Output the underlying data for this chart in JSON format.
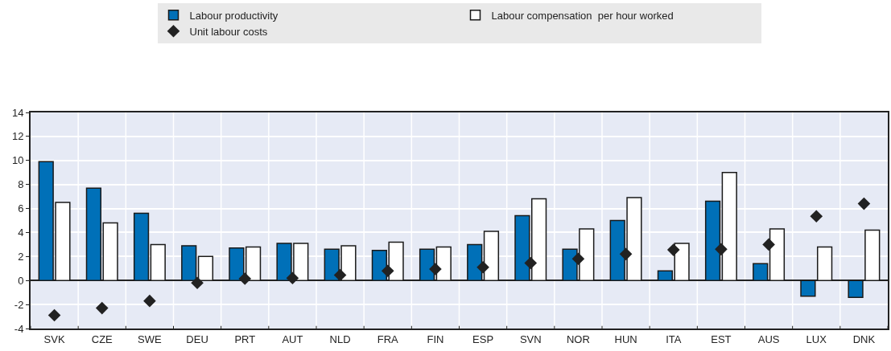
{
  "chart_data": {
    "type": "bar",
    "categories": [
      "SVK",
      "CZE",
      "SWE",
      "DEU",
      "PRT",
      "AUT",
      "NLD",
      "FRA",
      "FIN",
      "ESP",
      "SVN",
      "NOR",
      "HUN",
      "ITA",
      "EST",
      "AUS",
      "LUX",
      "DNK"
    ],
    "series": [
      {
        "name": "Labour productivity",
        "color": "#0070b8",
        "values": [
          9.9,
          7.7,
          5.6,
          2.9,
          2.7,
          3.1,
          2.6,
          2.5,
          2.6,
          3.0,
          5.4,
          2.6,
          5.0,
          0.8,
          6.6,
          1.4,
          -1.3,
          -1.4
        ]
      },
      {
        "name": "Labour compensation  per hour worked",
        "color": "#ffffff",
        "values": [
          6.5,
          4.8,
          3.0,
          2.0,
          2.8,
          3.1,
          2.9,
          3.2,
          2.8,
          4.1,
          6.8,
          4.3,
          6.9,
          3.1,
          9.0,
          4.3,
          2.8,
          4.2
        ]
      },
      {
        "name": "Unit labour costs",
        "type": "scatter",
        "color": "#222222",
        "marker": "diamond",
        "values": [
          -2.9,
          -2.3,
          -1.7,
          -0.2,
          0.15,
          0.2,
          0.45,
          0.8,
          0.95,
          1.1,
          1.45,
          1.8,
          2.2,
          2.55,
          2.6,
          3.0,
          5.35,
          6.4
        ]
      }
    ],
    "ylim": [
      -4,
      14
    ],
    "yticks": [
      -4,
      -2,
      0,
      2,
      4,
      6,
      8,
      10,
      12,
      14
    ],
    "grid": true,
    "legend": "top"
  }
}
